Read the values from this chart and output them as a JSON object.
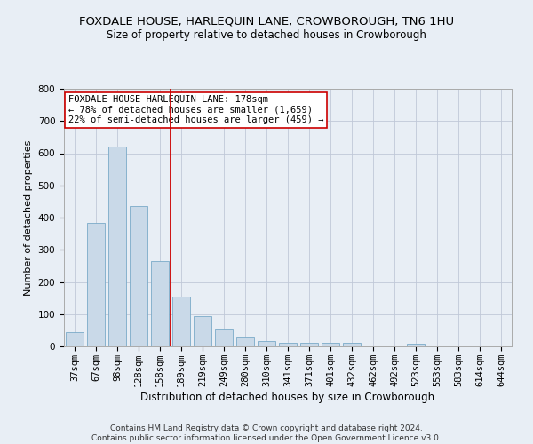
{
  "title1": "FOXDALE HOUSE, HARLEQUIN LANE, CROWBOROUGH, TN6 1HU",
  "title2": "Size of property relative to detached houses in Crowborough",
  "xlabel": "Distribution of detached houses by size in Crowborough",
  "ylabel": "Number of detached properties",
  "categories": [
    "37sqm",
    "67sqm",
    "98sqm",
    "128sqm",
    "158sqm",
    "189sqm",
    "219sqm",
    "249sqm",
    "280sqm",
    "310sqm",
    "341sqm",
    "371sqm",
    "401sqm",
    "432sqm",
    "462sqm",
    "492sqm",
    "523sqm",
    "553sqm",
    "583sqm",
    "614sqm",
    "644sqm"
  ],
  "values": [
    43,
    383,
    622,
    437,
    265,
    155,
    95,
    52,
    28,
    16,
    11,
    11,
    11,
    10,
    0,
    0,
    8,
    0,
    0,
    0,
    0
  ],
  "bar_color": "#c9d9e8",
  "bar_edge_color": "#7aaac8",
  "vline_x": 4.5,
  "vline_color": "#cc0000",
  "annotation_text": "FOXDALE HOUSE HARLEQUIN LANE: 178sqm\n← 78% of detached houses are smaller (1,659)\n22% of semi-detached houses are larger (459) →",
  "annotation_box_color": "#ffffff",
  "annotation_box_edge": "#cc0000",
  "ylim": [
    0,
    800
  ],
  "yticks": [
    0,
    100,
    200,
    300,
    400,
    500,
    600,
    700,
    800
  ],
  "grid_color": "#c0c8d8",
  "background_color": "#e8eef5",
  "fig_background_color": "#e8eef5",
  "footnote": "Contains HM Land Registry data © Crown copyright and database right 2024.\nContains public sector information licensed under the Open Government Licence v3.0.",
  "title1_fontsize": 9.5,
  "title2_fontsize": 8.5,
  "xlabel_fontsize": 8.5,
  "ylabel_fontsize": 8,
  "tick_fontsize": 7.5,
  "annotation_fontsize": 7.5,
  "footnote_fontsize": 6.5
}
